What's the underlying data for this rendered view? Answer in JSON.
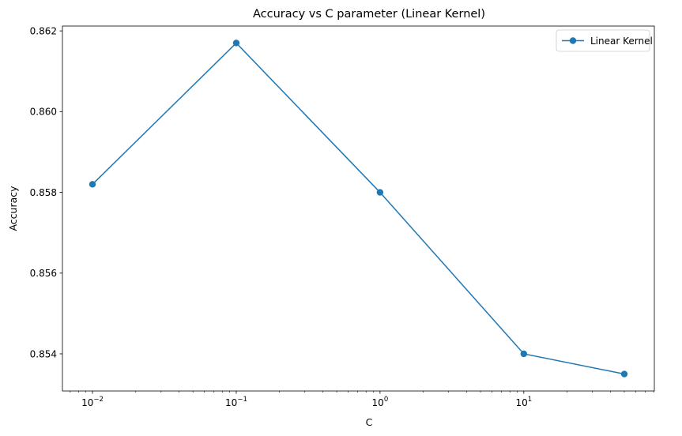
{
  "chart_data": {
    "type": "line",
    "title": "Accuracy vs C parameter (Linear Kernel)",
    "xlabel": "C",
    "ylabel": "Accuracy",
    "xscale": "log",
    "xlim": [
      0.00618,
      80.9
    ],
    "ylim": [
      0.85308,
      0.86212
    ],
    "x_ticks": [
      {
        "value": 0.01,
        "base": "10",
        "exp": "−2"
      },
      {
        "value": 0.1,
        "base": "10",
        "exp": "−1"
      },
      {
        "value": 1,
        "base": "10",
        "exp": "0"
      },
      {
        "value": 10,
        "base": "10",
        "exp": "1"
      }
    ],
    "y_ticks": [
      {
        "value": 0.854,
        "label": "0.854"
      },
      {
        "value": 0.856,
        "label": "0.856"
      },
      {
        "value": 0.858,
        "label": "0.858"
      },
      {
        "value": 0.86,
        "label": "0.860"
      },
      {
        "value": 0.862,
        "label": "0.862"
      }
    ],
    "grid": false,
    "legend": {
      "position": "top-right"
    },
    "series": [
      {
        "name": "Linear Kernel",
        "color": "#1f77b4",
        "marker": "circle",
        "x": [
          0.01,
          0.1,
          1,
          10,
          50
        ],
        "y": [
          0.8582,
          0.8617,
          0.858,
          0.854,
          0.8535
        ]
      }
    ]
  }
}
